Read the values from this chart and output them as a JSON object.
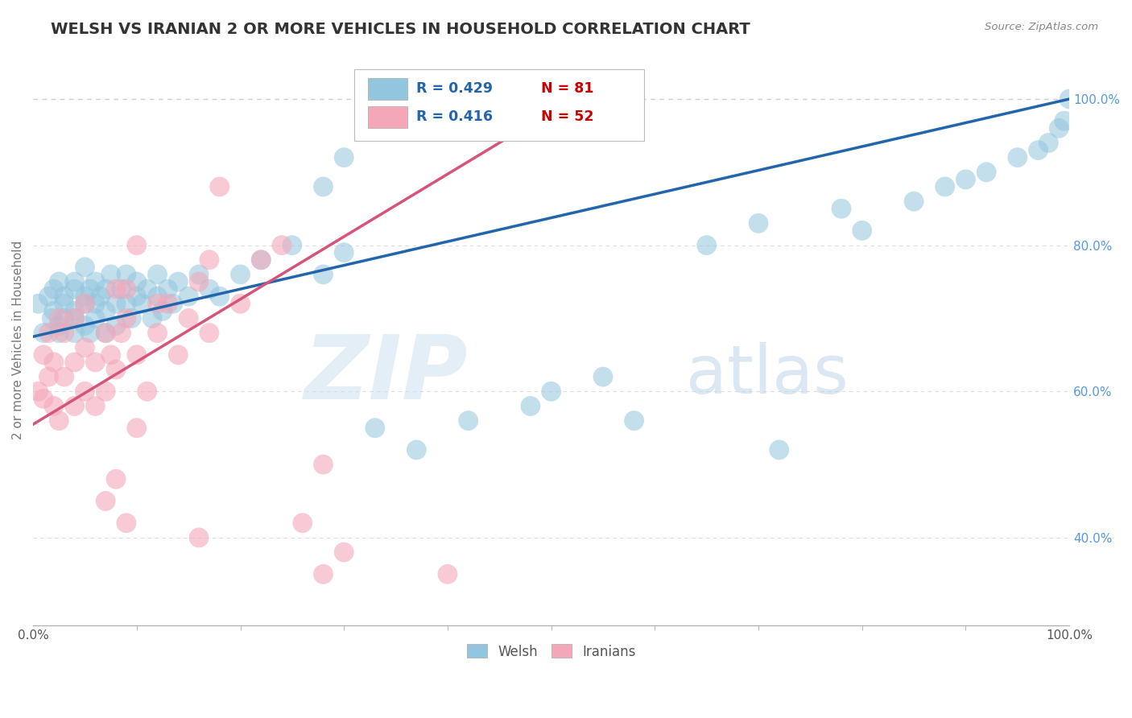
{
  "title": "WELSH VS IRANIAN 2 OR MORE VEHICLES IN HOUSEHOLD CORRELATION CHART",
  "source_text": "Source: ZipAtlas.com",
  "ylabel": "2 or more Vehicles in Household",
  "watermark_zip": "ZIP",
  "watermark_atlas": "atlas",
  "xlim": [
    0.0,
    1.0
  ],
  "ylim_min": 0.28,
  "ylim_max": 1.06,
  "x_tick_labels": [
    "0.0%",
    "100.0%"
  ],
  "y_ticks": [
    0.4,
    0.6,
    0.8,
    1.0
  ],
  "y_tick_labels": [
    "40.0%",
    "60.0%",
    "80.0%",
    "100.0%"
  ],
  "legend_labels": [
    "Welsh",
    "Iranians"
  ],
  "blue_color": "#92c5de",
  "pink_color": "#f4a7b9",
  "blue_line_color": "#2166ac",
  "pink_line_color": "#d6537a",
  "dashed_line_color": "#cccccc",
  "grid_color": "#dddddd",
  "blue_R_text": "R = 0.429",
  "blue_N_text": "N = 81",
  "pink_R_text": "R = 0.416",
  "pink_N_text": "N = 52",
  "R_color": "#2166ac",
  "N_color": "#cc0000",
  "blue_line_x": [
    0.0,
    1.0
  ],
  "blue_line_y": [
    0.675,
    1.0
  ],
  "pink_line_x": [
    0.0,
    0.52
  ],
  "pink_line_y": [
    0.555,
    1.0
  ],
  "welsh_x": [
    0.005,
    0.01,
    0.015,
    0.018,
    0.02,
    0.02,
    0.025,
    0.025,
    0.025,
    0.03,
    0.03,
    0.03,
    0.04,
    0.04,
    0.04,
    0.04,
    0.04,
    0.05,
    0.05,
    0.05,
    0.05,
    0.055,
    0.055,
    0.06,
    0.06,
    0.06,
    0.065,
    0.07,
    0.07,
    0.07,
    0.075,
    0.08,
    0.08,
    0.085,
    0.09,
    0.09,
    0.095,
    0.1,
    0.1,
    0.105,
    0.11,
    0.115,
    0.12,
    0.12,
    0.125,
    0.13,
    0.135,
    0.14,
    0.15,
    0.16,
    0.17,
    0.18,
    0.2,
    0.22,
    0.25,
    0.28,
    0.3,
    0.33,
    0.37,
    0.42,
    0.48,
    0.5,
    0.55,
    0.58,
    0.65,
    0.7,
    0.72,
    0.78,
    0.8,
    0.85,
    0.88,
    0.9,
    0.92,
    0.95,
    0.97,
    0.98,
    0.99,
    0.995,
    1.0,
    0.28,
    0.3
  ],
  "welsh_y": [
    0.72,
    0.68,
    0.73,
    0.7,
    0.74,
    0.71,
    0.69,
    0.75,
    0.68,
    0.73,
    0.7,
    0.72,
    0.75,
    0.71,
    0.68,
    0.74,
    0.7,
    0.73,
    0.69,
    0.77,
    0.72,
    0.74,
    0.68,
    0.72,
    0.75,
    0.7,
    0.73,
    0.71,
    0.74,
    0.68,
    0.76,
    0.72,
    0.69,
    0.74,
    0.72,
    0.76,
    0.7,
    0.73,
    0.75,
    0.72,
    0.74,
    0.7,
    0.73,
    0.76,
    0.71,
    0.74,
    0.72,
    0.75,
    0.73,
    0.76,
    0.74,
    0.73,
    0.76,
    0.78,
    0.8,
    0.76,
    0.79,
    0.55,
    0.52,
    0.56,
    0.58,
    0.6,
    0.62,
    0.56,
    0.8,
    0.83,
    0.52,
    0.85,
    0.82,
    0.86,
    0.88,
    0.89,
    0.9,
    0.92,
    0.93,
    0.94,
    0.96,
    0.97,
    1.0,
    0.88,
    0.92
  ],
  "iranian_x": [
    0.005,
    0.01,
    0.01,
    0.015,
    0.015,
    0.02,
    0.02,
    0.025,
    0.025,
    0.03,
    0.03,
    0.04,
    0.04,
    0.04,
    0.05,
    0.05,
    0.05,
    0.06,
    0.06,
    0.07,
    0.07,
    0.075,
    0.08,
    0.085,
    0.09,
    0.1,
    0.11,
    0.12,
    0.13,
    0.14,
    0.15,
    0.16,
    0.17,
    0.18,
    0.2,
    0.22,
    0.24,
    0.26,
    0.28,
    0.3,
    0.17,
    0.08,
    0.09,
    0.1,
    0.12,
    0.07,
    0.08,
    0.09,
    0.1,
    0.16,
    0.28,
    0.4
  ],
  "iranian_y": [
    0.6,
    0.65,
    0.59,
    0.62,
    0.68,
    0.58,
    0.64,
    0.7,
    0.56,
    0.62,
    0.68,
    0.58,
    0.64,
    0.7,
    0.6,
    0.66,
    0.72,
    0.58,
    0.64,
    0.6,
    0.68,
    0.65,
    0.63,
    0.68,
    0.7,
    0.65,
    0.6,
    0.68,
    0.72,
    0.65,
    0.7,
    0.75,
    0.68,
    0.88,
    0.72,
    0.78,
    0.8,
    0.42,
    0.5,
    0.38,
    0.78,
    0.74,
    0.74,
    0.8,
    0.72,
    0.45,
    0.48,
    0.42,
    0.55,
    0.4,
    0.35,
    0.35
  ]
}
